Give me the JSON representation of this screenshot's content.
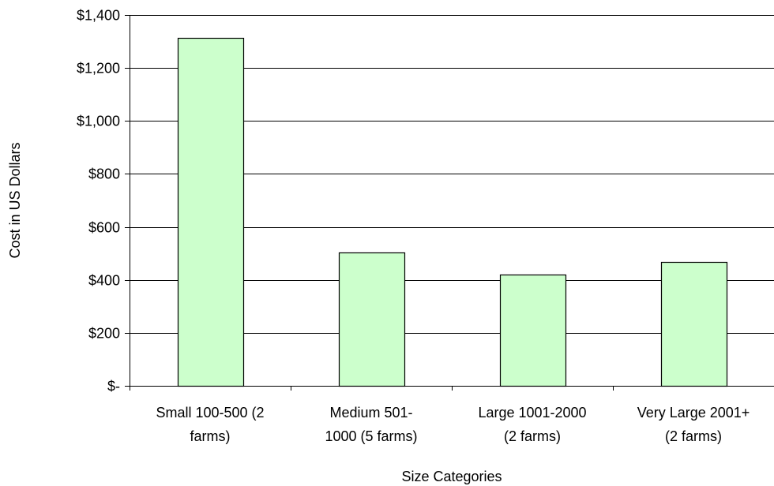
{
  "chart_data": {
    "type": "bar",
    "title": "",
    "xlabel": "Size Categories",
    "ylabel": "Cost in US Dollars",
    "categories": [
      [
        "Small 100-500 (2",
        "farms)"
      ],
      [
        "Medium 501-",
        "1000 (5 farms)"
      ],
      [
        "Large 1001-2000",
        "(2 farms)"
      ],
      [
        "Very Large 2001+",
        "(2 farms)"
      ]
    ],
    "values": [
      1315,
      503,
      420,
      468
    ],
    "ylim": [
      0,
      1400
    ],
    "yticks": [
      0,
      200,
      400,
      600,
      800,
      1000,
      1200,
      1400
    ],
    "ytick_labels": [
      "$-",
      "$200",
      "$400",
      "$600",
      "$800",
      "$1,000",
      "$1,200",
      "$1,400"
    ],
    "grid": true,
    "legend": "none",
    "bar_color": "#ccffcc",
    "bar_edge_color": "#000000"
  }
}
